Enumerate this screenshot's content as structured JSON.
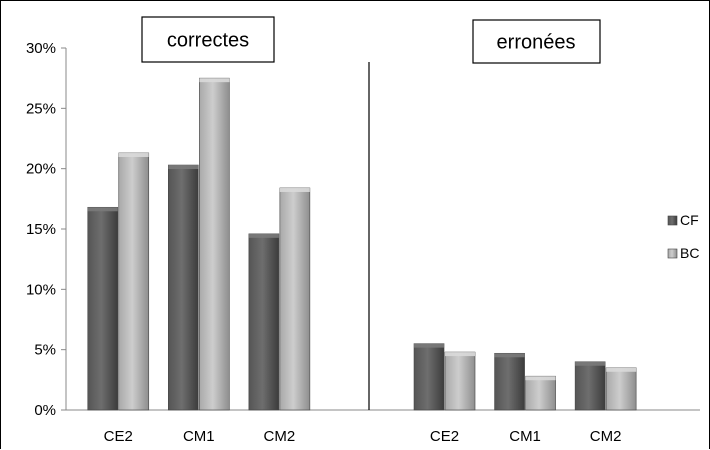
{
  "chart_data": {
    "type": "bar",
    "yticks": [
      "0%",
      "5%",
      "10%",
      "15%",
      "20%",
      "25%",
      "30%"
    ],
    "ylim": [
      0,
      30
    ],
    "legend_position": "right",
    "grid": false,
    "series_colors": {
      "CF": "#5a5a5a",
      "BC": "#b4b4b4"
    },
    "panels": [
      {
        "title": "correctes",
        "categories": [
          "CE2",
          "CM1",
          "CM2"
        ],
        "series": [
          {
            "name": "CF",
            "values": [
              16.8,
              20.3,
              14.6
            ]
          },
          {
            "name": "BC",
            "values": [
              21.3,
              27.5,
              18.4
            ]
          }
        ]
      },
      {
        "title": "erronées",
        "categories": [
          "CE2",
          "CM1",
          "CM2"
        ],
        "series": [
          {
            "name": "CF",
            "values": [
              5.5,
              4.7,
              4.0
            ]
          },
          {
            "name": "BC",
            "values": [
              4.8,
              2.8,
              3.5
            ]
          }
        ]
      }
    ],
    "legend": [
      "CF",
      "BC"
    ]
  }
}
